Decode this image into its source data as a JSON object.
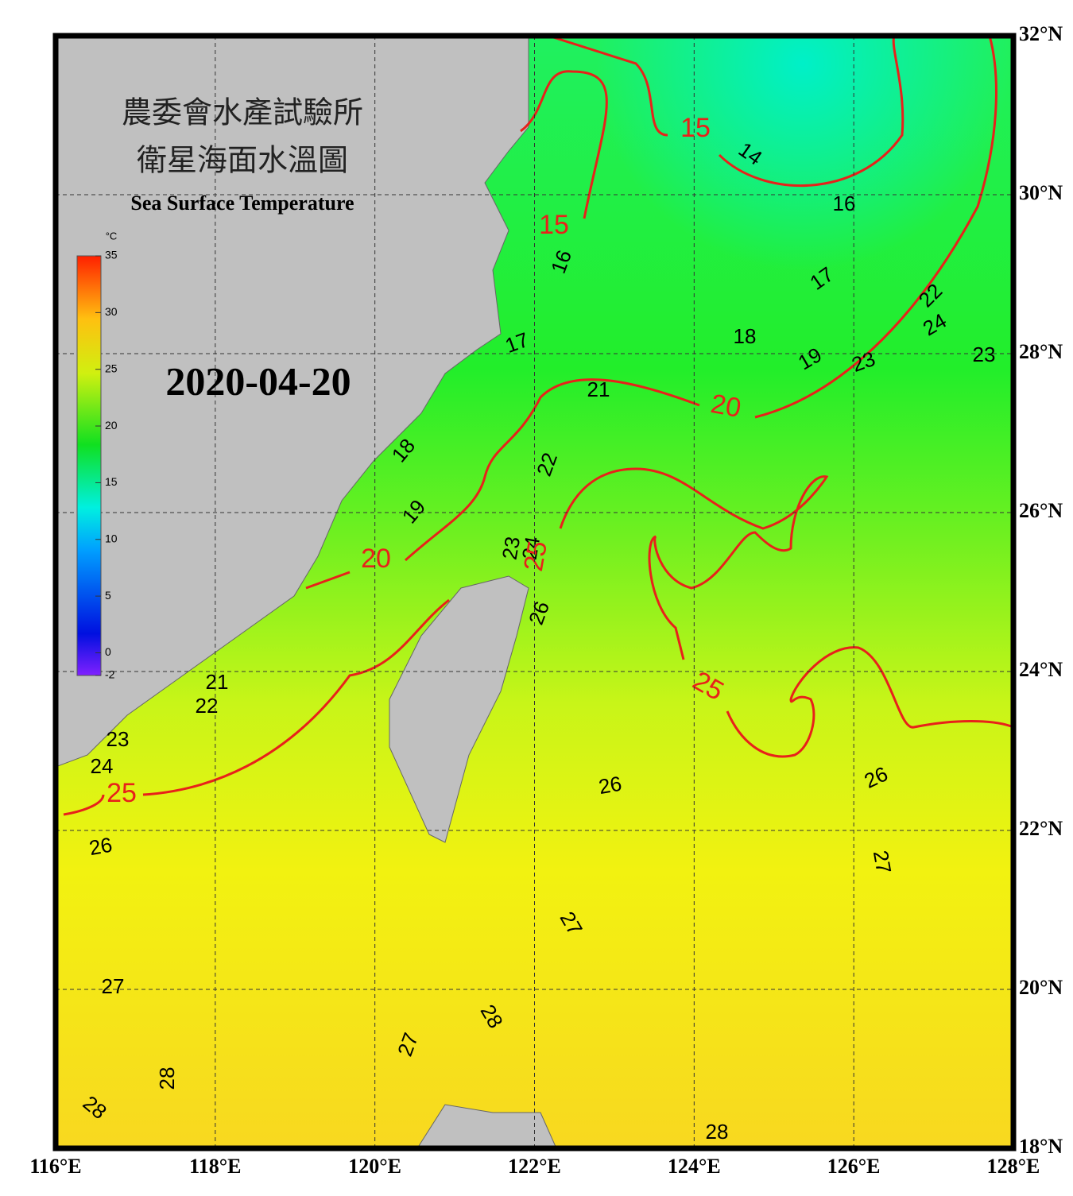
{
  "header": {
    "title_zh": "農委會水產試驗所",
    "subtitle_zh": "衛星海面水溫圖",
    "title_en": "Sea Surface Temperature"
  },
  "date": "2020-04-20",
  "colorbar": {
    "unit": "°C",
    "range": [
      -2,
      35
    ],
    "ticks": [
      35,
      30,
      25,
      20,
      15,
      10,
      5,
      0,
      -2
    ]
  },
  "lon_labels": [
    "116°E",
    "118°E",
    "120°E",
    "122°E",
    "124°E",
    "126°E",
    "128°E"
  ],
  "lat_labels": [
    "32°N",
    "30°N",
    "28°N",
    "26°N",
    "24°N",
    "22°N",
    "20°N",
    "18°N"
  ],
  "contours": [
    {
      "label": "15",
      "color": "#e8211a"
    },
    {
      "label": "14",
      "color": "#000000"
    },
    {
      "label": "16",
      "color": "#000000"
    },
    {
      "label": "15",
      "color": "#e8211a"
    },
    {
      "label": "16",
      "color": "#000000"
    },
    {
      "label": "17",
      "color": "#000000"
    },
    {
      "label": "22",
      "color": "#000000"
    },
    {
      "label": "24",
      "color": "#000000"
    },
    {
      "label": "18",
      "color": "#000000"
    },
    {
      "label": "17",
      "color": "#000000"
    },
    {
      "label": "19",
      "color": "#000000"
    },
    {
      "label": "23",
      "color": "#000000"
    },
    {
      "label": "23",
      "color": "#000000"
    },
    {
      "label": "21",
      "color": "#000000"
    },
    {
      "label": "20",
      "color": "#e8211a"
    },
    {
      "label": "18",
      "color": "#000000"
    },
    {
      "label": "22",
      "color": "#000000"
    },
    {
      "label": "19",
      "color": "#000000"
    },
    {
      "label": "23",
      "color": "#000000"
    },
    {
      "label": "24",
      "color": "#000000"
    },
    {
      "label": "25",
      "color": "#e8211a"
    },
    {
      "label": "20",
      "color": "#e8211a"
    },
    {
      "label": "26",
      "color": "#000000"
    },
    {
      "label": "25",
      "color": "#e8211a"
    },
    {
      "label": "21",
      "color": "#000000"
    },
    {
      "label": "22",
      "color": "#000000"
    },
    {
      "label": "23",
      "color": "#000000"
    },
    {
      "label": "24",
      "color": "#000000"
    },
    {
      "label": "25",
      "color": "#e8211a"
    },
    {
      "label": "26",
      "color": "#000000"
    },
    {
      "label": "26",
      "color": "#000000"
    },
    {
      "label": "26",
      "color": "#000000"
    },
    {
      "label": "27",
      "color": "#000000"
    },
    {
      "label": "27",
      "color": "#000000"
    },
    {
      "label": "27",
      "color": "#000000"
    },
    {
      "label": "28",
      "color": "#000000"
    },
    {
      "label": "27",
      "color": "#000000"
    },
    {
      "label": "28",
      "color": "#000000"
    },
    {
      "label": "28",
      "color": "#000000"
    },
    {
      "label": "28",
      "color": "#000000"
    }
  ]
}
